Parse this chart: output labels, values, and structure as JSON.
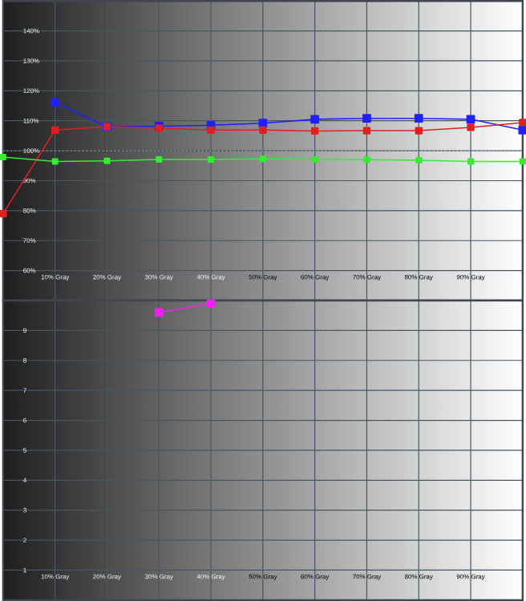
{
  "chart_data": [
    {
      "type": "line",
      "x": [
        0,
        10,
        20,
        30,
        40,
        50,
        60,
        70,
        80,
        90,
        100
      ],
      "series": [
        {
          "color": "#2020ff",
          "values": [
            null,
            116.2,
            108,
            108.2,
            108.5,
            109.2,
            110.5,
            110.8,
            110.8,
            110.5,
            106.9
          ]
        },
        {
          "color": "#e02020",
          "values": [
            79,
            106.9,
            108,
            107.5,
            106.9,
            106.9,
            106.6,
            106.7,
            106.7,
            107.8,
            109.4
          ]
        },
        {
          "color": "#33ee33",
          "values": [
            97.9,
            96.4,
            96.6,
            97.1,
            97.1,
            97.3,
            97.1,
            97,
            96.8,
            96.4,
            96.4
          ]
        }
      ],
      "xlim": [
        0,
        100
      ],
      "ylim": [
        50,
        150
      ],
      "xticks": [
        {
          "value": 10,
          "label": "10% Gray"
        },
        {
          "value": 20,
          "label": "20% Gray"
        },
        {
          "value": 30,
          "label": "30% Gray"
        },
        {
          "value": 40,
          "label": "40% Gray"
        },
        {
          "value": 50,
          "label": "50% Gray"
        },
        {
          "value": 60,
          "label": "60% Gray"
        },
        {
          "value": 70,
          "label": "70% Gray"
        },
        {
          "value": 80,
          "label": "80% Gray"
        },
        {
          "value": 90,
          "label": "90% Gray"
        }
      ],
      "yticks": [
        {
          "value": 60,
          "label": "60%"
        },
        {
          "value": 70,
          "label": "70%"
        },
        {
          "value": 80,
          "label": "80%"
        },
        {
          "value": 90,
          "label": "90%"
        },
        {
          "value": 100,
          "label": "100%"
        },
        {
          "value": 110,
          "label": "110%"
        },
        {
          "value": 120,
          "label": "120%"
        },
        {
          "value": 130,
          "label": "130%"
        },
        {
          "value": 140,
          "label": "140%"
        }
      ],
      "ref_lines": [
        {
          "axis": "y",
          "value": 100,
          "color": "#ffffff",
          "line_style": "dotted"
        }
      ],
      "grid": true,
      "marker": "square",
      "line_style": "solid"
    },
    {
      "type": "line",
      "series": [
        {
          "color": "#ee22ee",
          "x": [
            30,
            40
          ],
          "values": [
            9.6,
            9.9
          ]
        }
      ],
      "xlim": [
        0,
        100
      ],
      "ylim": [
        0,
        10
      ],
      "xticks": [
        {
          "value": 10,
          "label": "10% Gray"
        },
        {
          "value": 20,
          "label": "20% Gray"
        },
        {
          "value": 30,
          "label": "30% Gray"
        },
        {
          "value": 40,
          "label": "40% Gray"
        },
        {
          "value": 50,
          "label": "50% Gray"
        },
        {
          "value": 60,
          "label": "60% Gray"
        },
        {
          "value": 70,
          "label": "70% Gray"
        },
        {
          "value": 80,
          "label": "80% Gray"
        },
        {
          "value": 90,
          "label": "90% Gray"
        }
      ],
      "yticks": [
        1,
        2,
        3,
        4,
        5,
        6,
        7,
        8,
        9
      ],
      "grid": true,
      "marker": "square",
      "line_style": "solid"
    }
  ]
}
